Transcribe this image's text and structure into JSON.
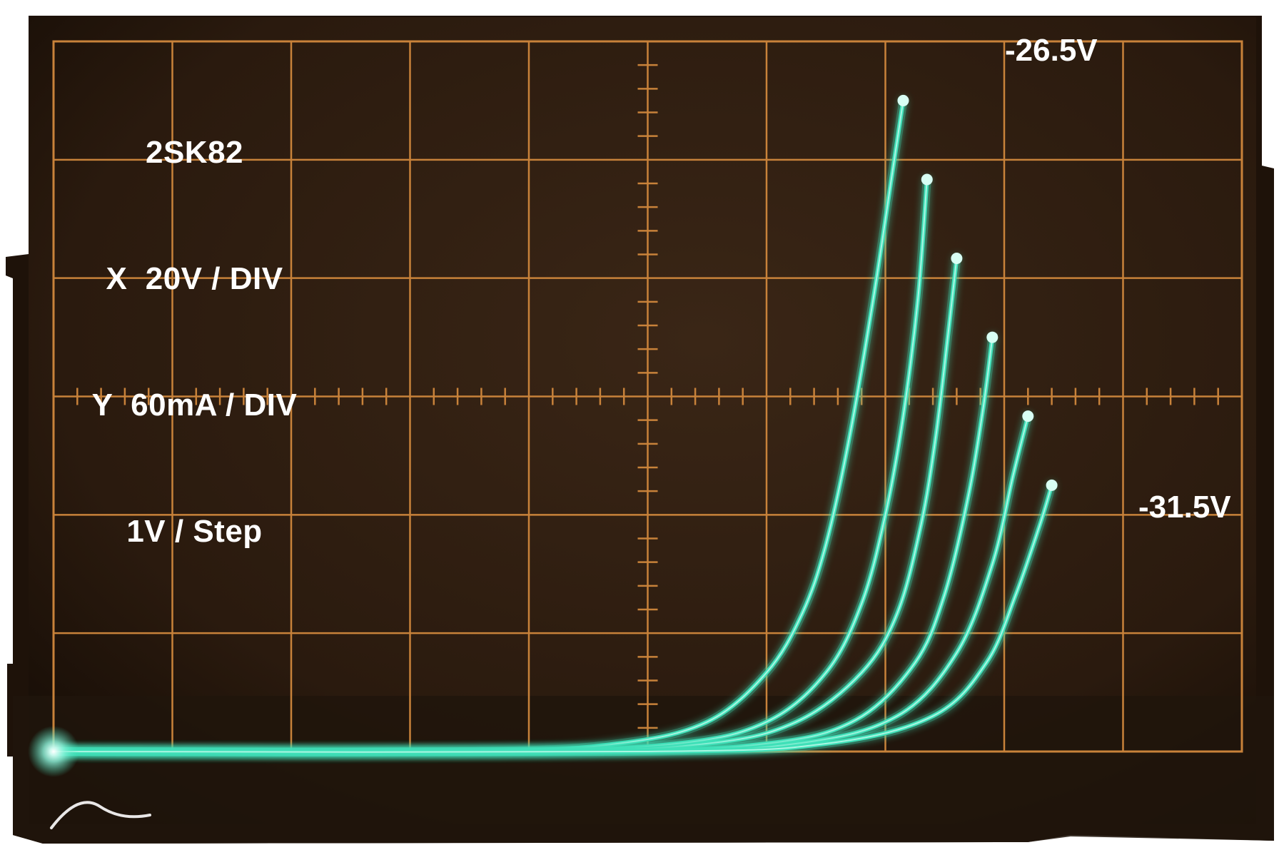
{
  "chart_data": {
    "type": "line",
    "title": "2SK82",
    "annotations": [
      "X  20V / DIV",
      "Y  60mA / DIV",
      "1V / Step"
    ],
    "x_per_div": "20V / DIV",
    "y_per_div": "60mA / DIV",
    "step": "1V / Step",
    "grid": true,
    "divisions": {
      "x": 10,
      "y": 6
    },
    "xlim": [
      0,
      200
    ],
    "ylim": [
      0,
      360
    ],
    "xunit": "V",
    "yunit": "mA",
    "curve_labels": {
      "first": "-26.5V",
      "last": "-31.5V"
    },
    "series": [
      {
        "name": "-26.5V",
        "x": [
          0,
          70,
          95,
          110,
          120,
          126,
          130,
          134,
          138,
          141,
          143
        ],
        "y": [
          0,
          0,
          4,
          15,
          40,
          70,
          105,
          160,
          230,
          290,
          330
        ]
      },
      {
        "name": "",
        "x": [
          0,
          75,
          105,
          120,
          130,
          136,
          140,
          143,
          145.5,
          147
        ],
        "y": [
          0,
          0,
          4,
          15,
          40,
          75,
          120,
          170,
          230,
          290
        ]
      },
      {
        "name": "",
        "x": [
          0,
          80,
          110,
          125,
          136,
          142,
          146,
          148.5,
          150.5,
          152
        ],
        "y": [
          0,
          0,
          4,
          15,
          40,
          70,
          115,
          160,
          210,
          250
        ]
      },
      {
        "name": "",
        "x": [
          0,
          90,
          120,
          135,
          145,
          150,
          154,
          156.5,
          158
        ],
        "y": [
          0,
          0,
          4,
          16,
          45,
          80,
          130,
          175,
          210
        ]
      },
      {
        "name": "",
        "x": [
          0,
          95,
          125,
          142,
          152,
          158,
          161.5,
          164
        ],
        "y": [
          0,
          0,
          4,
          18,
          50,
          95,
          140,
          170
        ]
      },
      {
        "name": "-31.5V",
        "x": [
          0,
          100,
          130,
          148,
          157,
          162,
          166,
          168
        ],
        "y": [
          0,
          0,
          4,
          18,
          45,
          80,
          115,
          135
        ]
      }
    ]
  },
  "colors": {
    "screen": "#2d1c10",
    "graticule": "#c8823a",
    "trace": "#3fe0b8",
    "trace_core": "#d8fff4",
    "label": "#ffffff"
  }
}
